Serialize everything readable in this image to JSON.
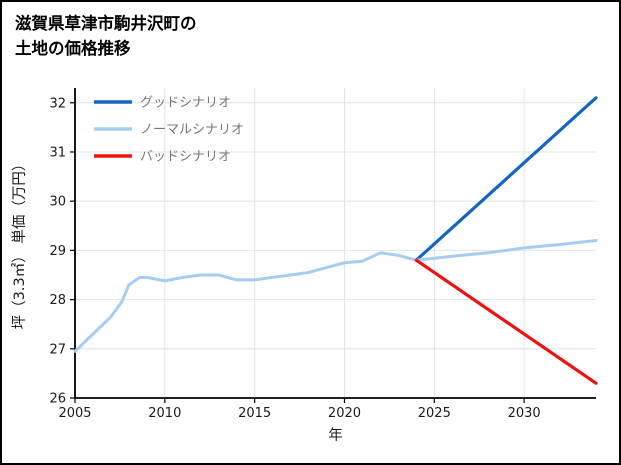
{
  "title": {
    "line1": "滋賀県草津市駒井沢町の",
    "line2": "土地の価格推移"
  },
  "chart_data": {
    "type": "line",
    "title": "滋賀県草津市駒井沢町の土地の価格推移",
    "xlabel": "年",
    "ylabel": "坪（3.3㎡） 単価（万円）",
    "xlim": [
      2005,
      2034
    ],
    "ylim": [
      26,
      32.3
    ],
    "xticks": [
      2005,
      2010,
      2015,
      2020,
      2025,
      2030
    ],
    "yticks": [
      26,
      27,
      28,
      29,
      30,
      31,
      32
    ],
    "grid": true,
    "grid_color": "#dde4ec",
    "axis_color": "#000000",
    "legend_position": "top-left",
    "series": [
      {
        "name": "グッドシナリオ",
        "color": "#1565c0",
        "width": 3.2,
        "points": [
          [
            2024,
            28.8
          ],
          [
            2034,
            32.1
          ]
        ]
      },
      {
        "name": "ノーマルシナリオ",
        "color": "#a6cdf0",
        "width": 3,
        "points": [
          [
            2005,
            26.95
          ],
          [
            2006,
            27.3
          ],
          [
            2007,
            27.65
          ],
          [
            2007.6,
            27.95
          ],
          [
            2008,
            28.3
          ],
          [
            2008.6,
            28.45
          ],
          [
            2009,
            28.45
          ],
          [
            2010,
            28.38
          ],
          [
            2011,
            28.45
          ],
          [
            2012,
            28.5
          ],
          [
            2013,
            28.5
          ],
          [
            2014,
            28.4
          ],
          [
            2015,
            28.4
          ],
          [
            2016,
            28.45
          ],
          [
            2017,
            28.5
          ],
          [
            2018,
            28.55
          ],
          [
            2019,
            28.65
          ],
          [
            2020,
            28.75
          ],
          [
            2021,
            28.78
          ],
          [
            2022,
            28.95
          ],
          [
            2023,
            28.9
          ],
          [
            2024,
            28.8
          ],
          [
            2026,
            28.88
          ],
          [
            2028,
            28.95
          ],
          [
            2030,
            29.05
          ],
          [
            2032,
            29.12
          ],
          [
            2034,
            29.2
          ]
        ]
      },
      {
        "name": "バッドシナリオ",
        "color": "#ee1111",
        "width": 3.2,
        "points": [
          [
            2024,
            28.8
          ],
          [
            2034,
            26.3
          ]
        ]
      }
    ]
  }
}
